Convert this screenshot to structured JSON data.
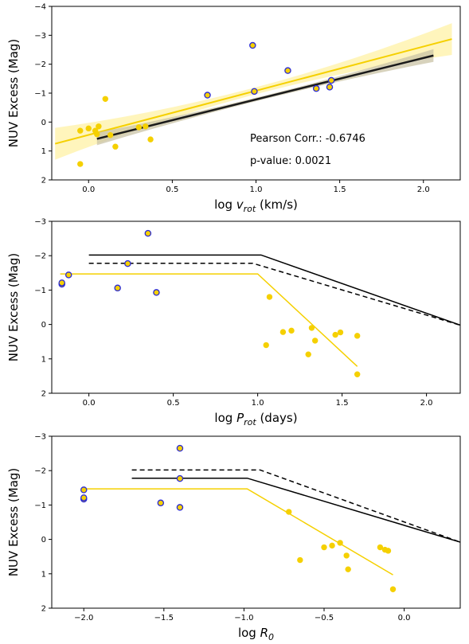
{
  "colors": {
    "gold": "#f5d000",
    "gold_band": "#fff3b0",
    "fit_dark": "#1a1a1a",
    "fit_band_dark": "#c9c3a6",
    "marker_edge_blue": "#2b2bd6",
    "model_line": "#000000"
  },
  "chart_data": [
    {
      "type": "scatter",
      "xlabel": "log v_rot (km/s)",
      "xlabel_parts": {
        "pre": "log ",
        "var": "v",
        "sub": "rot",
        "post": " (km/s)"
      },
      "ylabel": "NUV Excess (Mag)",
      "xlim": [
        -0.22,
        2.22
      ],
      "ylim": [
        2,
        -4
      ],
      "y_inverted": true,
      "xticks": [
        "0.0",
        "0.5",
        "1.0",
        "1.5",
        "2.0"
      ],
      "xtick_values": [
        0,
        0.5,
        1.0,
        1.5,
        2.0
      ],
      "yticks": [
        "−4",
        "−3",
        "−2",
        "−1",
        "0",
        "1",
        "2"
      ],
      "ytick_values": [
        -4,
        -3,
        -2,
        -1,
        0,
        1,
        2
      ],
      "series": [
        {
          "marker": "gold-filled",
          "x": [
            -0.05,
            0.0,
            0.04,
            0.05,
            0.06,
            0.1,
            0.13,
            0.16,
            0.3,
            0.34,
            0.37,
            -0.05
          ],
          "y": [
            0.3,
            0.22,
            0.3,
            0.42,
            0.15,
            -0.8,
            0.45,
            0.85,
            0.18,
            0.15,
            0.6,
            1.45
          ]
        },
        {
          "marker": "gold-blue-edge",
          "x": [
            0.71,
            0.98,
            0.99,
            1.19,
            1.36,
            1.44,
            1.45
          ],
          "y": [
            -0.93,
            -2.65,
            -1.06,
            -1.78,
            -1.16,
            -1.21,
            -1.44
          ]
        }
      ],
      "fits": [
        {
          "color": "gold",
          "x": [
            -0.2,
            2.17
          ],
          "y": [
            0.75,
            -2.87
          ],
          "band": true
        },
        {
          "color": "dark",
          "x": [
            0.05,
            2.06
          ],
          "y": [
            0.58,
            -2.3
          ],
          "band": true
        }
      ],
      "annotations": [
        "Pearson Corr.: -0.6746",
        "p-value: 0.0021"
      ]
    },
    {
      "type": "scatter",
      "xlabel": "log P_rot (days)",
      "xlabel_parts": {
        "pre": "log ",
        "var": "P",
        "sub": "rot",
        "post": " (days)"
      },
      "ylabel": "NUV Excess (Mag)",
      "xlim": [
        -0.22,
        2.2
      ],
      "ylim": [
        2,
        -3
      ],
      "y_inverted": true,
      "xticks": [
        "0.0",
        "0.5",
        "1.0",
        "1.5",
        "2.0"
      ],
      "xtick_values": [
        0,
        0.5,
        1.0,
        1.5,
        2.0
      ],
      "yticks": [
        "−3",
        "−2",
        "−1",
        "0",
        "1",
        "2"
      ],
      "ytick_values": [
        -3,
        -2,
        -1,
        0,
        1,
        2
      ],
      "series": [
        {
          "marker": "gold-filled",
          "x": [
            1.05,
            1.07,
            1.15,
            1.2,
            1.3,
            1.32,
            1.34,
            1.46,
            1.49,
            1.59,
            1.59
          ],
          "y": [
            0.6,
            -0.8,
            0.22,
            0.18,
            0.87,
            0.1,
            0.47,
            0.3,
            0.23,
            0.33,
            1.45
          ]
        },
        {
          "marker": "gold-blue-edge",
          "x": [
            -0.16,
            -0.16,
            -0.12,
            0.17,
            0.23,
            0.35,
            0.4
          ],
          "y": [
            -1.17,
            -1.21,
            -1.44,
            -1.06,
            -1.77,
            -2.65,
            -0.93
          ]
        }
      ],
      "model_lines": [
        {
          "style": "solid",
          "color": "dark",
          "x": [
            0.0,
            1.02,
            2.2
          ],
          "y": [
            -2.02,
            -2.02,
            0.02
          ]
        },
        {
          "style": "dashed",
          "color": "dark",
          "x": [
            0.0,
            0.97,
            2.2
          ],
          "y": [
            -1.78,
            -1.78,
            0.02
          ]
        },
        {
          "style": "solid",
          "color": "gold",
          "x": [
            -0.17,
            1.0,
            1.59
          ],
          "y": [
            -1.47,
            -1.47,
            1.22
          ]
        }
      ]
    },
    {
      "type": "scatter",
      "xlabel": "log R_0",
      "xlabel_parts": {
        "pre": "log ",
        "var": "R",
        "sub": "0",
        "post": ""
      },
      "ylabel": "NUV Excess (Mag)",
      "xlim": [
        -2.2,
        0.35
      ],
      "ylim": [
        2,
        -3
      ],
      "y_inverted": true,
      "xticks": [
        "−2.0",
        "−1.5",
        "−1.0",
        "−0.5",
        "0.0"
      ],
      "xtick_values": [
        -2.0,
        -1.5,
        -1.0,
        -0.5,
        0.0
      ],
      "yticks": [
        "−3",
        "−2",
        "−1",
        "0",
        "1",
        "2"
      ],
      "ytick_values": [
        -3,
        -2,
        -1,
        0,
        1,
        2
      ],
      "series": [
        {
          "marker": "gold-filled",
          "x": [
            -0.72,
            -0.65,
            -0.5,
            -0.45,
            -0.4,
            -0.36,
            -0.35,
            -0.15,
            -0.12,
            -0.1,
            -0.07
          ],
          "y": [
            -0.8,
            0.6,
            0.23,
            0.18,
            0.1,
            0.47,
            0.87,
            0.23,
            0.3,
            0.33,
            1.45
          ]
        },
        {
          "marker": "gold-blue-edge",
          "x": [
            -2.0,
            -2.0,
            -2.0,
            -1.52,
            -1.4,
            -1.4,
            -1.4
          ],
          "y": [
            -1.17,
            -1.21,
            -1.44,
            -1.06,
            -1.77,
            -2.65,
            -0.93
          ]
        }
      ],
      "model_lines": [
        {
          "style": "dashed",
          "color": "dark",
          "x": [
            -1.7,
            -0.9,
            0.35
          ],
          "y": [
            -2.02,
            -2.02,
            0.08
          ]
        },
        {
          "style": "solid",
          "color": "dark",
          "x": [
            -1.7,
            -0.98,
            0.35
          ],
          "y": [
            -1.78,
            -1.78,
            0.08
          ]
        },
        {
          "style": "solid",
          "color": "gold",
          "x": [
            -2.0,
            -0.98,
            -0.07
          ],
          "y": [
            -1.47,
            -1.47,
            1.03
          ]
        }
      ]
    }
  ]
}
